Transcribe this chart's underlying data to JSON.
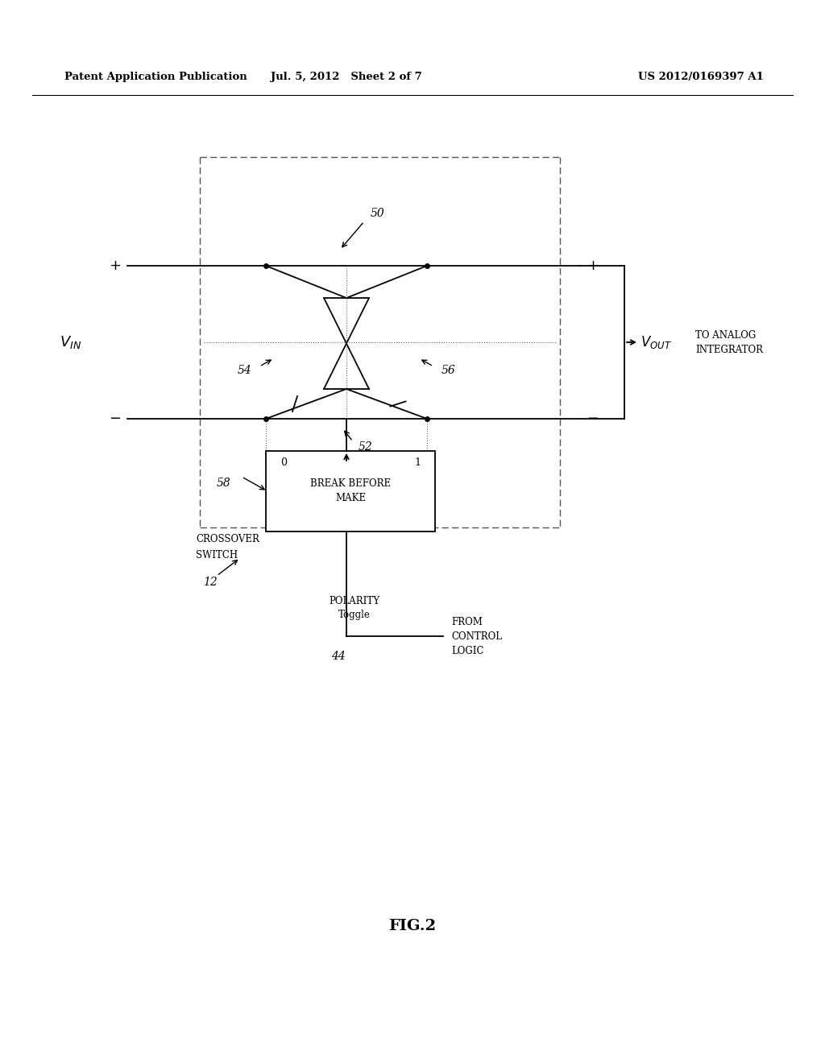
{
  "bg_color": "#ffffff",
  "line_color": "#000000",
  "dashed_color": "#555555",
  "header_left": "Patent Application Publication",
  "header_mid": "Jul. 5, 2012   Sheet 2 of 7",
  "header_right": "US 2012/0169397 A1",
  "fig_label": "FIG.2",
  "label_50": "50",
  "label_52": "52",
  "label_54": "54",
  "label_56": "56",
  "label_58": "58",
  "label_12": "12",
  "label_44": "44",
  "to_analog": "TO ANALOG\nINTEGRATOR",
  "crossover_line1": "CROSSOVER",
  "crossover_line2": "SWITCH",
  "polarity_toggle": "POLARITY\nToggle",
  "from_control": "FROM\nCONTROL\nLOGIC",
  "bbm_label_0": "0",
  "bbm_label_1": "1",
  "bbm_text": "BREAK BEFORE\nMAKE"
}
